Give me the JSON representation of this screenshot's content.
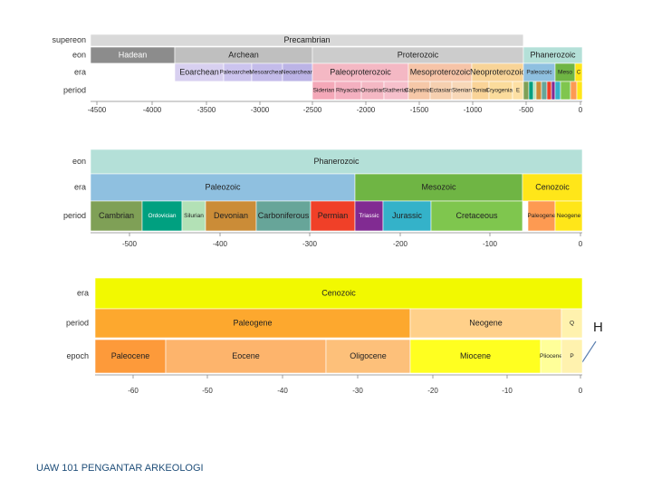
{
  "panels": [
    {
      "rows": [
        {
          "label": "supereon",
          "blocks": [
            "Precambrian"
          ]
        },
        {
          "label": "eon",
          "blocks": [
            "Hadean",
            "Archean",
            "Proterozoic",
            "Phanerozoic"
          ]
        },
        {
          "label": "era",
          "blocks": [
            "Eoarchean",
            "Paleoarchean",
            "Mesoarchean",
            "Neoarchean",
            "Paleoproterozoic",
            "Mesoproterozoic",
            "Neoproterozoic",
            "Paleozoic",
            "Meso",
            "C"
          ]
        },
        {
          "label": "period",
          "blocks": [
            "Siderian",
            "Rhyacian",
            "Orosirian",
            "Statherian",
            "Calymmian",
            "Ectasian",
            "Stenian",
            "Tonian",
            "Cryogenian",
            "E"
          ]
        }
      ],
      "axis": [
        "-4500",
        "-4000",
        "-3500",
        "-3000",
        "-2500",
        "-2000",
        "-1500",
        "-1000",
        "-500",
        "0"
      ]
    },
    {
      "rows": [
        {
          "label": "eon",
          "blocks": [
            "Phanerozoic"
          ]
        },
        {
          "label": "era",
          "blocks": [
            "Paleozoic",
            "Mesozoic",
            "Cenozoic"
          ]
        },
        {
          "label": "period",
          "blocks": [
            "Cambrian",
            "Ordovician",
            "Silurian",
            "Devonian",
            "Carboniferous",
            "Permian",
            "Triassic",
            "Jurassic",
            "Cretaceous",
            "Paleogene",
            "Neogene"
          ]
        }
      ],
      "axis": [
        "-500",
        "-400",
        "-300",
        "-200",
        "-100",
        "0"
      ]
    },
    {
      "rows": [
        {
          "label": "era",
          "blocks": [
            "Cenozoic"
          ]
        },
        {
          "label": "period",
          "blocks": [
            "Paleogene",
            "Neogene",
            "Q"
          ]
        },
        {
          "label": "epoch",
          "blocks": [
            "Paleocene",
            "Eocene",
            "Oligocene",
            "Miocene",
            "Pliocene",
            "P"
          ]
        }
      ],
      "axis": [
        "-60",
        "-50",
        "-40",
        "-30",
        "-20",
        "-10",
        "0"
      ]
    }
  ],
  "annotation": "H",
  "footer": "UAW 101 PENGANTAR ARKEOLOGI"
}
